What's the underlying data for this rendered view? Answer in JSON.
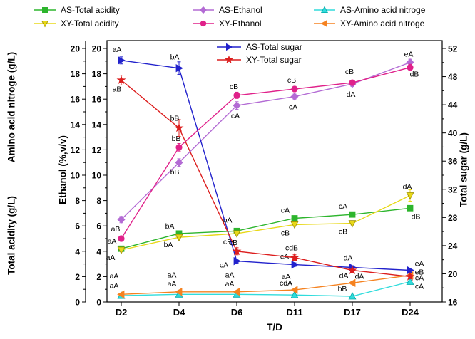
{
  "chart_data": {
    "type": "line",
    "x_title": "T/D",
    "categories": [
      "D2",
      "D4",
      "D6",
      "D11",
      "D17",
      "D24"
    ],
    "axes": {
      "outer_top_title": "Amino acid nitroge (g/L)",
      "outer_bottom_title": "Total acidity (g/L)",
      "ethanol_title": "Ethanol (%,v/v)",
      "sugar_title": "Total sugar (g/L)",
      "left_range": [
        0,
        20
      ],
      "left_major_step": 2,
      "sugar_range": [
        16,
        52
      ],
      "sugar_major_step": 4,
      "grid": false
    },
    "legend_outer_position": "top",
    "legend_inner_position": "inside-top-center",
    "series": [
      {
        "name": "AS-Total acidity",
        "axis": "left",
        "color": "#2db52d",
        "marker": "square",
        "values": [
          4.2,
          5.4,
          5.6,
          6.6,
          6.9,
          7.4
        ],
        "err": [
          0.1,
          0.12,
          0.1,
          0.15,
          0.12,
          0.15
        ],
        "labels": [
          {
            "t": "aA",
            "dx": -13,
            "dy": -7
          },
          {
            "t": "bA",
            "dx": -13,
            "dy": -7
          },
          {
            "t": "bA",
            "dx": -13,
            "dy": -12
          },
          {
            "t": "cA",
            "dx": -13,
            "dy": -8
          },
          {
            "t": "cA",
            "dx": -13,
            "dy": -8
          },
          {
            "t": "dB",
            "dx": 8,
            "dy": 15
          }
        ]
      },
      {
        "name": "XY-Total acidity",
        "axis": "left",
        "color": "#e8d818",
        "edge": "#9a8c00",
        "marker": "triangle-down",
        "values": [
          4.1,
          5.1,
          5.4,
          6.1,
          6.2,
          8.4
        ],
        "err": [
          0.1,
          0.1,
          0.1,
          0.12,
          0.12,
          0.45
        ],
        "labels": [
          {
            "t": "aA",
            "dx": -15,
            "dy": 14
          },
          {
            "t": "bA",
            "dx": -15,
            "dy": 14
          },
          {
            "t": "cB",
            "dx": -13,
            "dy": 15
          },
          {
            "t": "cB",
            "dx": -13,
            "dy": 15
          },
          {
            "t": "cB",
            "dx": -13,
            "dy": 15
          },
          {
            "t": "dA",
            "dx": -4,
            "dy": -9
          }
        ]
      },
      {
        "name": "AS-Ethanol",
        "axis": "left",
        "color": "#b36bd4",
        "marker": "diamond",
        "values": [
          6.5,
          11.0,
          15.5,
          16.2,
          17.2,
          18.9
        ],
        "err": [
          0.25,
          0.3,
          0.3,
          0.2,
          0.2,
          0.25
        ],
        "labels": [
          {
            "t": "",
            "dx": 0,
            "dy": 0
          },
          {
            "t": "bB",
            "dx": -6,
            "dy": 17
          },
          {
            "t": "cA",
            "dx": -2,
            "dy": 18
          },
          {
            "t": "cA",
            "dx": -2,
            "dy": 18
          },
          {
            "t": "dA",
            "dx": -2,
            "dy": 18
          },
          {
            "t": "eA",
            "dx": -2,
            "dy": -8
          }
        ]
      },
      {
        "name": "XY-Ethanol",
        "axis": "left",
        "color": "#e0218a",
        "marker": "circle",
        "values": [
          5.0,
          12.2,
          16.3,
          16.8,
          17.3,
          18.5
        ],
        "err": [
          0.2,
          0.3,
          0.25,
          0.2,
          0.2,
          0.25
        ],
        "labels": [
          {
            "t": "aB",
            "dx": -8,
            "dy": -10
          },
          {
            "t": "bB",
            "dx": -4,
            "dy": -9
          },
          {
            "t": "cB",
            "dx": -4,
            "dy": -9
          },
          {
            "t": "cB",
            "dx": -4,
            "dy": -9
          },
          {
            "t": "cB",
            "dx": -4,
            "dy": -12
          },
          {
            "t": "dB",
            "dx": 6,
            "dy": 13
          }
        ]
      },
      {
        "name": "AS-Amino acid nitroge",
        "axis": "left",
        "color": "#30dcdc",
        "edge": "#00a8a8",
        "marker": "triangle-up",
        "values": [
          0.5,
          0.6,
          0.6,
          0.55,
          0.45,
          1.6
        ],
        "err": [
          0.05,
          0.05,
          0.05,
          0.05,
          0.05,
          0.1
        ],
        "labels": [
          {
            "t": "aA",
            "dx": -10,
            "dy": -24
          },
          {
            "t": "aA",
            "dx": -10,
            "dy": -24
          },
          {
            "t": "aA",
            "dx": -10,
            "dy": -24
          },
          {
            "t": "aA",
            "dx": -12,
            "dy": -22
          },
          {
            "t": "bB",
            "dx": -14,
            "dy": -7
          },
          {
            "t": "cA",
            "dx": 13,
            "dy": 10
          }
        ]
      },
      {
        "name": "XY-Amino acid nitroge",
        "axis": "left",
        "color": "#f58220",
        "marker": "triangle-left",
        "values": [
          0.6,
          0.8,
          0.8,
          0.95,
          1.5,
          2.1
        ],
        "err": [
          0.06,
          0.08,
          0.06,
          0.08,
          0.1,
          0.12
        ],
        "labels": [
          {
            "t": "aA",
            "dx": -10,
            "dy": -9
          },
          {
            "t": "aA",
            "dx": -10,
            "dy": -8
          },
          {
            "t": "aA",
            "dx": -10,
            "dy": -8
          },
          {
            "t": "cdA",
            "dx": -12,
            "dy": -6
          },
          {
            "t": "dA",
            "dx": -12,
            "dy": -7
          },
          {
            "t": "cA",
            "dx": 13,
            "dy": 7
          }
        ]
      },
      {
        "name": "AS-Total sugar",
        "axis": "sugar",
        "color": "#2222cc",
        "marker": "triangle-right",
        "values": [
          50.3,
          49.2,
          21.8,
          21.3,
          20.9,
          20.5
        ],
        "err": [
          0.5,
          0.9,
          0.3,
          0.25,
          0.25,
          0.3
        ],
        "labels": [
          {
            "t": "aA",
            "dx": -6,
            "dy": -12
          },
          {
            "t": "bA",
            "dx": -6,
            "dy": -12
          },
          {
            "t": "cA",
            "dx": -18,
            "dy": 9
          },
          {
            "t": "cA",
            "dx": -14,
            "dy": -8
          },
          {
            "t": "dA",
            "dx": -6,
            "dy": -10
          },
          {
            "t": "eA",
            "dx": 13,
            "dy": -6
          }
        ]
      },
      {
        "name": "XY-Total sugar",
        "axis": "sugar",
        "color": "#dc1e1e",
        "marker": "star",
        "values": [
          47.5,
          40.7,
          23.2,
          22.3,
          20.5,
          19.6
        ],
        "err": [
          0.7,
          1.2,
          0.5,
          0.4,
          0.3,
          0.3
        ],
        "labels": [
          {
            "t": "aB",
            "dx": -6,
            "dy": 16
          },
          {
            "t": "bB",
            "dx": -6,
            "dy": -10
          },
          {
            "t": "cB",
            "dx": -5,
            "dy": -9
          },
          {
            "t": "cdB",
            "dx": -4,
            "dy": -10
          },
          {
            "t": "dA",
            "dx": 10,
            "dy": 12
          },
          {
            "t": "eB",
            "dx": 13,
            "dy": -3
          }
        ]
      }
    ]
  }
}
